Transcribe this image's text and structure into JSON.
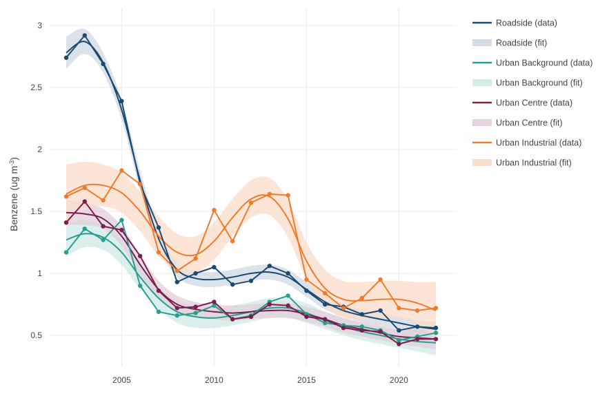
{
  "chart_data": {
    "type": "line",
    "title": "",
    "xlabel": "",
    "ylabel": "Benzene (ug m",
    "ylabel_sup": "-3",
    "ylabel_close": ")",
    "xlim": [
      2001.5,
      2022.5
    ],
    "ylim": [
      0.3,
      3.1
    ],
    "x_ticks": [
      2005,
      2010,
      2015,
      2020
    ],
    "y_ticks": [
      0.5,
      1,
      1.5,
      2,
      2.5,
      3
    ],
    "y_tick_labels": [
      "0.5",
      "1",
      "1.5",
      "2",
      "2.5",
      "3"
    ],
    "grid": true,
    "legend_position": "right",
    "x": [
      2002,
      2003,
      2004,
      2005,
      2006,
      2007,
      2008,
      2009,
      2010,
      2011,
      2012,
      2013,
      2014,
      2015,
      2016,
      2017,
      2018,
      2019,
      2020,
      2021,
      2022
    ],
    "series": [
      {
        "name": "Roadside",
        "color": "#1b4a73",
        "band": "#d0d8e2",
        "data": [
          2.74,
          2.92,
          2.69,
          2.39,
          1.72,
          1.37,
          0.93,
          1.0,
          1.05,
          0.91,
          0.94,
          1.06,
          1.0,
          0.86,
          0.75,
          0.73,
          0.67,
          0.7,
          0.54,
          0.57,
          0.56
        ],
        "fit": [
          2.78,
          2.87,
          2.7,
          2.32,
          1.75,
          1.28,
          1.03,
          0.96,
          0.95,
          0.97,
          1.0,
          1.01,
          0.97,
          0.87,
          0.77,
          0.7,
          0.66,
          0.63,
          0.6,
          0.57,
          0.55
        ],
        "ci": [
          0.13,
          0.1,
          0.08,
          0.08,
          0.08,
          0.07,
          0.06,
          0.06,
          0.06,
          0.06,
          0.06,
          0.06,
          0.06,
          0.06,
          0.06,
          0.05,
          0.05,
          0.05,
          0.05,
          0.05,
          0.06
        ]
      },
      {
        "name": "Urban Background",
        "color": "#2a9d8f",
        "band": "#cfe9e5",
        "data": [
          1.17,
          1.36,
          1.27,
          1.43,
          0.9,
          0.69,
          0.66,
          0.68,
          0.74,
          0.63,
          0.66,
          0.77,
          0.82,
          0.67,
          0.6,
          0.58,
          0.57,
          0.54,
          0.46,
          0.49,
          0.52
        ],
        "fit": [
          1.27,
          1.32,
          1.29,
          1.17,
          0.97,
          0.8,
          0.69,
          0.65,
          0.64,
          0.66,
          0.69,
          0.72,
          0.72,
          0.68,
          0.62,
          0.57,
          0.53,
          0.5,
          0.47,
          0.45,
          0.44
        ],
        "ci": [
          0.13,
          0.11,
          0.1,
          0.1,
          0.1,
          0.09,
          0.09,
          0.09,
          0.08,
          0.08,
          0.08,
          0.08,
          0.08,
          0.08,
          0.07,
          0.07,
          0.07,
          0.07,
          0.07,
          0.08,
          0.1
        ]
      },
      {
        "name": "Urban Centre",
        "color": "#7a1f4f",
        "band": "#e2cfdb",
        "data": [
          1.41,
          1.58,
          1.38,
          1.35,
          1.14,
          0.86,
          0.72,
          0.73,
          0.77,
          0.63,
          0.65,
          0.75,
          0.74,
          0.65,
          0.63,
          0.56,
          0.54,
          0.53,
          0.43,
          0.47,
          0.47
        ],
        "fit": [
          1.49,
          1.48,
          1.44,
          1.3,
          1.07,
          0.87,
          0.75,
          0.71,
          0.69,
          0.68,
          0.69,
          0.7,
          0.7,
          0.67,
          0.63,
          0.58,
          0.55,
          0.52,
          0.49,
          0.48,
          0.47
        ],
        "ci": [
          0.1,
          0.09,
          0.08,
          0.08,
          0.08,
          0.07,
          0.07,
          0.06,
          0.06,
          0.06,
          0.06,
          0.06,
          0.06,
          0.06,
          0.06,
          0.06,
          0.06,
          0.06,
          0.06,
          0.07,
          0.08
        ]
      },
      {
        "name": "Urban Industrial",
        "color": "#f07b2d",
        "band": "#fbdcc9",
        "data": [
          1.62,
          1.69,
          1.59,
          1.83,
          1.72,
          1.17,
          1.02,
          1.12,
          1.51,
          1.26,
          1.57,
          1.64,
          1.63,
          0.95,
          0.84,
          0.72,
          0.8,
          0.95,
          0.72,
          0.7,
          0.72
        ],
        "fit": [
          1.64,
          1.71,
          1.71,
          1.65,
          1.5,
          1.3,
          1.17,
          1.15,
          1.26,
          1.45,
          1.6,
          1.62,
          1.44,
          1.1,
          0.88,
          0.79,
          0.78,
          0.79,
          0.79,
          0.76,
          0.7
        ],
        "ci": [
          0.24,
          0.19,
          0.17,
          0.16,
          0.16,
          0.16,
          0.15,
          0.15,
          0.15,
          0.15,
          0.15,
          0.15,
          0.15,
          0.15,
          0.15,
          0.15,
          0.15,
          0.15,
          0.15,
          0.17,
          0.23
        ]
      }
    ],
    "legend": [
      {
        "label": "Roadside (data)",
        "kind": "line",
        "series": 0
      },
      {
        "label": "Roadside (fit)",
        "kind": "band",
        "series": 0
      },
      {
        "label": "Urban Background (data)",
        "kind": "line",
        "series": 1
      },
      {
        "label": "Urban Background (fit)",
        "kind": "band",
        "series": 1
      },
      {
        "label": "Urban Centre (data)",
        "kind": "line",
        "series": 2
      },
      {
        "label": "Urban Centre (fit)",
        "kind": "band",
        "series": 2
      },
      {
        "label": "Urban Industrial (data)",
        "kind": "line",
        "series": 3
      },
      {
        "label": "Urban Industrial (fit)",
        "kind": "band",
        "series": 3
      }
    ]
  }
}
